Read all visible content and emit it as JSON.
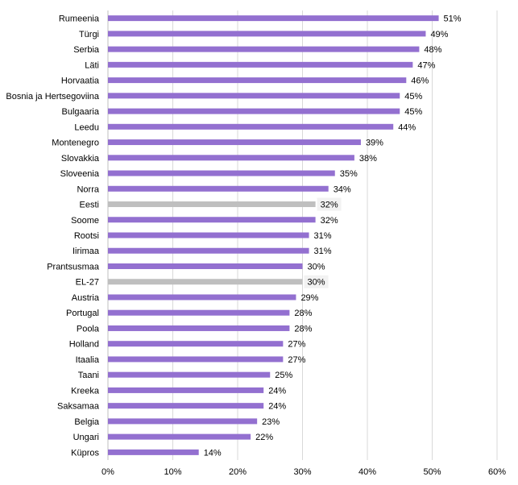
{
  "chart_data": {
    "type": "bar",
    "orientation": "horizontal",
    "categories": [
      "Rumeenia",
      "Türgi",
      "Serbia",
      "Läti",
      "Horvaatia",
      "Bosnia ja Hertsegoviina",
      "Bulgaaria",
      "Leedu",
      "Montenegro",
      "Slovakkia",
      "Sloveenia",
      "Norra",
      "Eesti",
      "Soome",
      "Rootsi",
      "Iirimaa",
      "Prantsusmaa",
      "EL-27",
      "Austria",
      "Portugal",
      "Poola",
      "Holland",
      "Itaalia",
      "Taani",
      "Kreeka",
      "Saksamaa",
      "Belgia",
      "Ungari",
      "Küpros"
    ],
    "values": [
      51,
      49,
      48,
      47,
      46,
      45,
      45,
      44,
      39,
      38,
      35,
      34,
      32,
      32,
      31,
      31,
      30,
      30,
      29,
      28,
      28,
      27,
      27,
      25,
      24,
      24,
      23,
      22,
      14
    ],
    "value_labels": [
      "51%",
      "49%",
      "48%",
      "47%",
      "46%",
      "45%",
      "45%",
      "44%",
      "39%",
      "38%",
      "35%",
      "34%",
      "32%",
      "32%",
      "31%",
      "31%",
      "30%",
      "30%",
      "29%",
      "28%",
      "28%",
      "27%",
      "27%",
      "25%",
      "24%",
      "24%",
      "23%",
      "22%",
      "14%"
    ],
    "highlighted": [
      "Eesti",
      "EL-27"
    ],
    "x_ticks": [
      "0%",
      "10%",
      "20%",
      "30%",
      "40%",
      "50%",
      "60%"
    ],
    "xlim": [
      0,
      60
    ],
    "grid": "vertical",
    "legend": "none",
    "colors": {
      "bar": "#9370d0",
      "highlight": "#bfbfbf",
      "highlight_label_bg": "#f2f2f2",
      "grid": "#d9d9d9",
      "axis": "#bfbfbf"
    }
  }
}
